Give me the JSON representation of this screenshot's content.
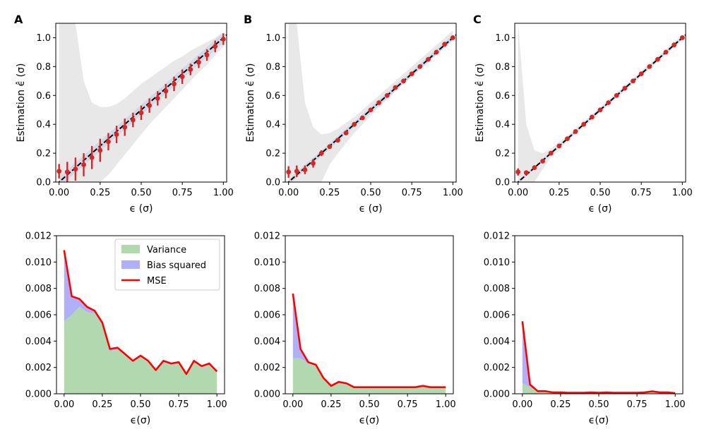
{
  "panel_letters": [
    "A",
    "B",
    "C"
  ],
  "colors": {
    "ci_band": "#e8e8e8",
    "inner_band": "#c9d3e6",
    "identity_line": "#000000",
    "estimate_points": "#d62728",
    "variance_fill": "#b2d8b0",
    "bias_fill": "#b0b0fa",
    "mse_line": "#ff0000"
  },
  "legend": {
    "variance": "Variance",
    "bias": "Bias squared",
    "mse": "MSE"
  },
  "chart_data": [
    {
      "type": "scatter",
      "panel": "A",
      "xlabel": "ϵ (σ)",
      "ylabel": "Estimation ϵ̂ (σ)",
      "xlim": [
        -0.02,
        1.02
      ],
      "ylim": [
        0,
        1.1
      ],
      "xticks": [
        "0.00",
        "0.25",
        "0.50",
        "0.75",
        "1.00"
      ],
      "yticks": [
        "0.0",
        "0.2",
        "0.4",
        "0.6",
        "0.8",
        "1.0"
      ],
      "x": [
        0,
        0.05,
        0.1,
        0.15,
        0.2,
        0.25,
        0.3,
        0.35,
        0.4,
        0.45,
        0.5,
        0.55,
        0.6,
        0.65,
        0.7,
        0.75,
        0.8,
        0.85,
        0.9,
        0.95,
        1.0
      ],
      "y": [
        0.075,
        0.07,
        0.09,
        0.12,
        0.17,
        0.22,
        0.28,
        0.33,
        0.38,
        0.43,
        0.48,
        0.53,
        0.58,
        0.63,
        0.68,
        0.73,
        0.78,
        0.83,
        0.88,
        0.94,
        0.99
      ],
      "err": [
        0.05,
        0.07,
        0.08,
        0.08,
        0.08,
        0.08,
        0.06,
        0.06,
        0.06,
        0.05,
        0.05,
        0.05,
        0.05,
        0.05,
        0.05,
        0.05,
        0.04,
        0.04,
        0.04,
        0.04,
        0.04
      ],
      "band_upper": [
        1.1,
        1.1,
        1.1,
        0.7,
        0.55,
        0.52,
        0.52,
        0.54,
        0.58,
        0.63,
        0.68,
        0.72,
        0.76,
        0.8,
        0.84,
        0.87,
        0.91,
        0.94,
        0.97,
        1.0,
        1.04
      ],
      "band_lower": [
        0,
        0,
        0,
        0,
        0,
        0,
        0.05,
        0.12,
        0.19,
        0.26,
        0.33,
        0.4,
        0.46,
        0.52,
        0.58,
        0.64,
        0.7,
        0.76,
        0.81,
        0.88,
        0.94
      ],
      "inner_halfwidth": 0.035
    },
    {
      "type": "scatter",
      "panel": "B",
      "xlabel": "ϵ (σ)",
      "ylabel": "Estimation ϵ̂ (σ)",
      "xlim": [
        -0.02,
        1.02
      ],
      "ylim": [
        0,
        1.1
      ],
      "xticks": [
        "0.00",
        "0.25",
        "0.50",
        "0.75",
        "1.00"
      ],
      "yticks": [
        "0.0",
        "0.2",
        "0.4",
        "0.6",
        "0.8",
        "1.0"
      ],
      "x": [
        0,
        0.05,
        0.1,
        0.15,
        0.2,
        0.25,
        0.3,
        0.35,
        0.4,
        0.45,
        0.5,
        0.55,
        0.6,
        0.65,
        0.7,
        0.75,
        0.8,
        0.85,
        0.9,
        0.95,
        1.0
      ],
      "y": [
        0.07,
        0.075,
        0.085,
        0.13,
        0.2,
        0.245,
        0.29,
        0.34,
        0.4,
        0.445,
        0.5,
        0.55,
        0.6,
        0.655,
        0.7,
        0.75,
        0.8,
        0.85,
        0.9,
        0.955,
        1.0
      ],
      "err": [
        0.04,
        0.04,
        0.03,
        0.03,
        0.02,
        0.015,
        0.015,
        0.012,
        0.01,
        0.01,
        0.01,
        0.01,
        0.01,
        0.01,
        0.01,
        0.01,
        0.01,
        0.01,
        0.01,
        0.01,
        0.01
      ],
      "band_upper": [
        1.1,
        1.1,
        0.55,
        0.38,
        0.33,
        0.34,
        0.37,
        0.41,
        0.45,
        0.5,
        0.55,
        0.6,
        0.65,
        0.7,
        0.75,
        0.8,
        0.85,
        0.9,
        0.95,
        1.0,
        1.05
      ],
      "band_lower": [
        0,
        0,
        0,
        0,
        0,
        0.12,
        0.2,
        0.27,
        0.34,
        0.4,
        0.46,
        0.52,
        0.57,
        0.63,
        0.68,
        0.73,
        0.78,
        0.83,
        0.88,
        0.93,
        0.98
      ],
      "inner_halfwidth": 0.02
    },
    {
      "type": "scatter",
      "panel": "C",
      "xlabel": "ϵ (σ)",
      "ylabel": "Estimation ϵ̂ (σ)",
      "xlim": [
        -0.02,
        1.02
      ],
      "ylim": [
        0,
        1.1
      ],
      "xticks": [
        "0.00",
        "0.25",
        "0.50",
        "0.75",
        "1.00"
      ],
      "yticks": [
        "0.0",
        "0.2",
        "0.4",
        "0.6",
        "0.8",
        "1.0"
      ],
      "x": [
        0,
        0.05,
        0.1,
        0.15,
        0.2,
        0.25,
        0.3,
        0.35,
        0.4,
        0.45,
        0.5,
        0.55,
        0.6,
        0.65,
        0.7,
        0.75,
        0.8,
        0.85,
        0.9,
        0.95,
        1.0
      ],
      "y": [
        0.07,
        0.065,
        0.1,
        0.145,
        0.2,
        0.25,
        0.3,
        0.35,
        0.4,
        0.45,
        0.5,
        0.55,
        0.6,
        0.65,
        0.7,
        0.75,
        0.8,
        0.85,
        0.9,
        0.95,
        1.0
      ],
      "err": [
        0.025,
        0.01,
        0.01,
        0.008,
        0.008,
        0.008,
        0.008,
        0.008,
        0.008,
        0.008,
        0.008,
        0.008,
        0.008,
        0.008,
        0.008,
        0.008,
        0.008,
        0.008,
        0.008,
        0.008,
        0.008
      ],
      "band_upper": [
        1.1,
        0.4,
        0.22,
        0.2,
        0.23,
        0.28,
        0.32,
        0.37,
        0.42,
        0.47,
        0.52,
        0.57,
        0.62,
        0.67,
        0.72,
        0.77,
        0.82,
        0.87,
        0.92,
        0.97,
        1.02
      ],
      "band_lower": [
        0,
        0,
        0,
        0.09,
        0.17,
        0.22,
        0.28,
        0.33,
        0.38,
        0.43,
        0.48,
        0.53,
        0.58,
        0.63,
        0.68,
        0.73,
        0.78,
        0.83,
        0.88,
        0.93,
        0.98
      ],
      "inner_halfwidth": 0.01
    },
    {
      "type": "area",
      "panel": "A-bottom",
      "xlabel": "ϵ(σ)",
      "ylabel": "",
      "xlim": [
        -0.05,
        1.05
      ],
      "ylim": [
        0,
        0.012
      ],
      "xticks": [
        "0.00",
        "0.25",
        "0.50",
        "0.75",
        "1.00"
      ],
      "yticks": [
        "0.000",
        "0.002",
        "0.004",
        "0.006",
        "0.008",
        "0.010",
        "0.012"
      ],
      "legend": "top-right",
      "x": [
        0,
        0.05,
        0.1,
        0.15,
        0.2,
        0.25,
        0.3,
        0.35,
        0.4,
        0.45,
        0.5,
        0.55,
        0.6,
        0.65,
        0.7,
        0.75,
        0.8,
        0.85,
        0.9,
        0.95,
        1.0
      ],
      "variance": [
        0.0055,
        0.006,
        0.0066,
        0.0062,
        0.0061,
        0.0052,
        0.0032,
        0.0034,
        0.0029,
        0.0024,
        0.0028,
        0.0024,
        0.0018,
        0.0024,
        0.0022,
        0.0023,
        0.0014,
        0.0024,
        0.002,
        0.0022,
        0.0017
      ],
      "mse": [
        0.0109,
        0.0074,
        0.0072,
        0.0066,
        0.0063,
        0.0054,
        0.0034,
        0.0035,
        0.003,
        0.0025,
        0.0029,
        0.0025,
        0.0018,
        0.0025,
        0.0023,
        0.0024,
        0.0015,
        0.0025,
        0.0021,
        0.0023,
        0.0017
      ]
    },
    {
      "type": "area",
      "panel": "B-bottom",
      "xlabel": "ϵ(σ)",
      "ylabel": "",
      "xlim": [
        -0.05,
        1.05
      ],
      "ylim": [
        0,
        0.012
      ],
      "xticks": [
        "0.00",
        "0.25",
        "0.50",
        "0.75",
        "1.00"
      ],
      "yticks": [
        "0.000",
        "0.002",
        "0.004",
        "0.006",
        "0.008",
        "0.010",
        "0.012"
      ],
      "x": [
        0,
        0.05,
        0.1,
        0.15,
        0.2,
        0.25,
        0.3,
        0.35,
        0.4,
        0.45,
        0.5,
        0.55,
        0.6,
        0.65,
        0.7,
        0.75,
        0.8,
        0.85,
        0.9,
        0.95,
        1.0
      ],
      "variance": [
        0.0027,
        0.0027,
        0.0023,
        0.0021,
        0.0011,
        0.0006,
        0.0008,
        0.0007,
        0.0005,
        0.0005,
        0.0005,
        0.0005,
        0.0005,
        0.0005,
        0.0005,
        0.0005,
        0.0005,
        0.0006,
        0.0005,
        0.0005,
        0.0005
      ],
      "mse": [
        0.0076,
        0.0034,
        0.0024,
        0.0022,
        0.0012,
        0.0006,
        0.0009,
        0.0008,
        0.0005,
        0.0005,
        0.0005,
        0.0005,
        0.0005,
        0.0005,
        0.0005,
        0.0005,
        0.0005,
        0.0006,
        0.0005,
        0.0005,
        0.0005
      ]
    },
    {
      "type": "area",
      "panel": "C-bottom",
      "xlabel": "ϵ(σ)",
      "ylabel": "",
      "xlim": [
        -0.05,
        1.05
      ],
      "ylim": [
        0,
        0.012
      ],
      "xticks": [
        "0.00",
        "0.25",
        "0.50",
        "0.75",
        "1.00"
      ],
      "yticks": [
        "0.000",
        "0.002",
        "0.004",
        "0.006",
        "0.008",
        "0.010",
        "0.012"
      ],
      "x": [
        0,
        0.05,
        0.1,
        0.15,
        0.2,
        0.25,
        0.3,
        0.35,
        0.4,
        0.45,
        0.5,
        0.55,
        0.6,
        0.65,
        0.7,
        0.75,
        0.8,
        0.85,
        0.9,
        0.95,
        1.0
      ],
      "variance": [
        0.0008,
        0.0005,
        0.0002,
        0.0002,
        0.0001,
        0.0001,
        8e-05,
        8e-05,
        8e-05,
        8e-05,
        8e-05,
        8e-05,
        8e-05,
        8e-05,
        8e-05,
        8e-05,
        8e-05,
        0.00015,
        8e-05,
        8e-05,
        5e-05
      ],
      "mse": [
        0.0055,
        0.0007,
        0.0002,
        0.0002,
        0.0001,
        0.0001,
        8e-05,
        8e-05,
        8e-05,
        0.0001,
        8e-05,
        0.0001,
        8e-05,
        8e-05,
        8e-05,
        8e-05,
        0.0001,
        0.00018,
        0.0001,
        0.0001,
        5e-05
      ]
    }
  ]
}
